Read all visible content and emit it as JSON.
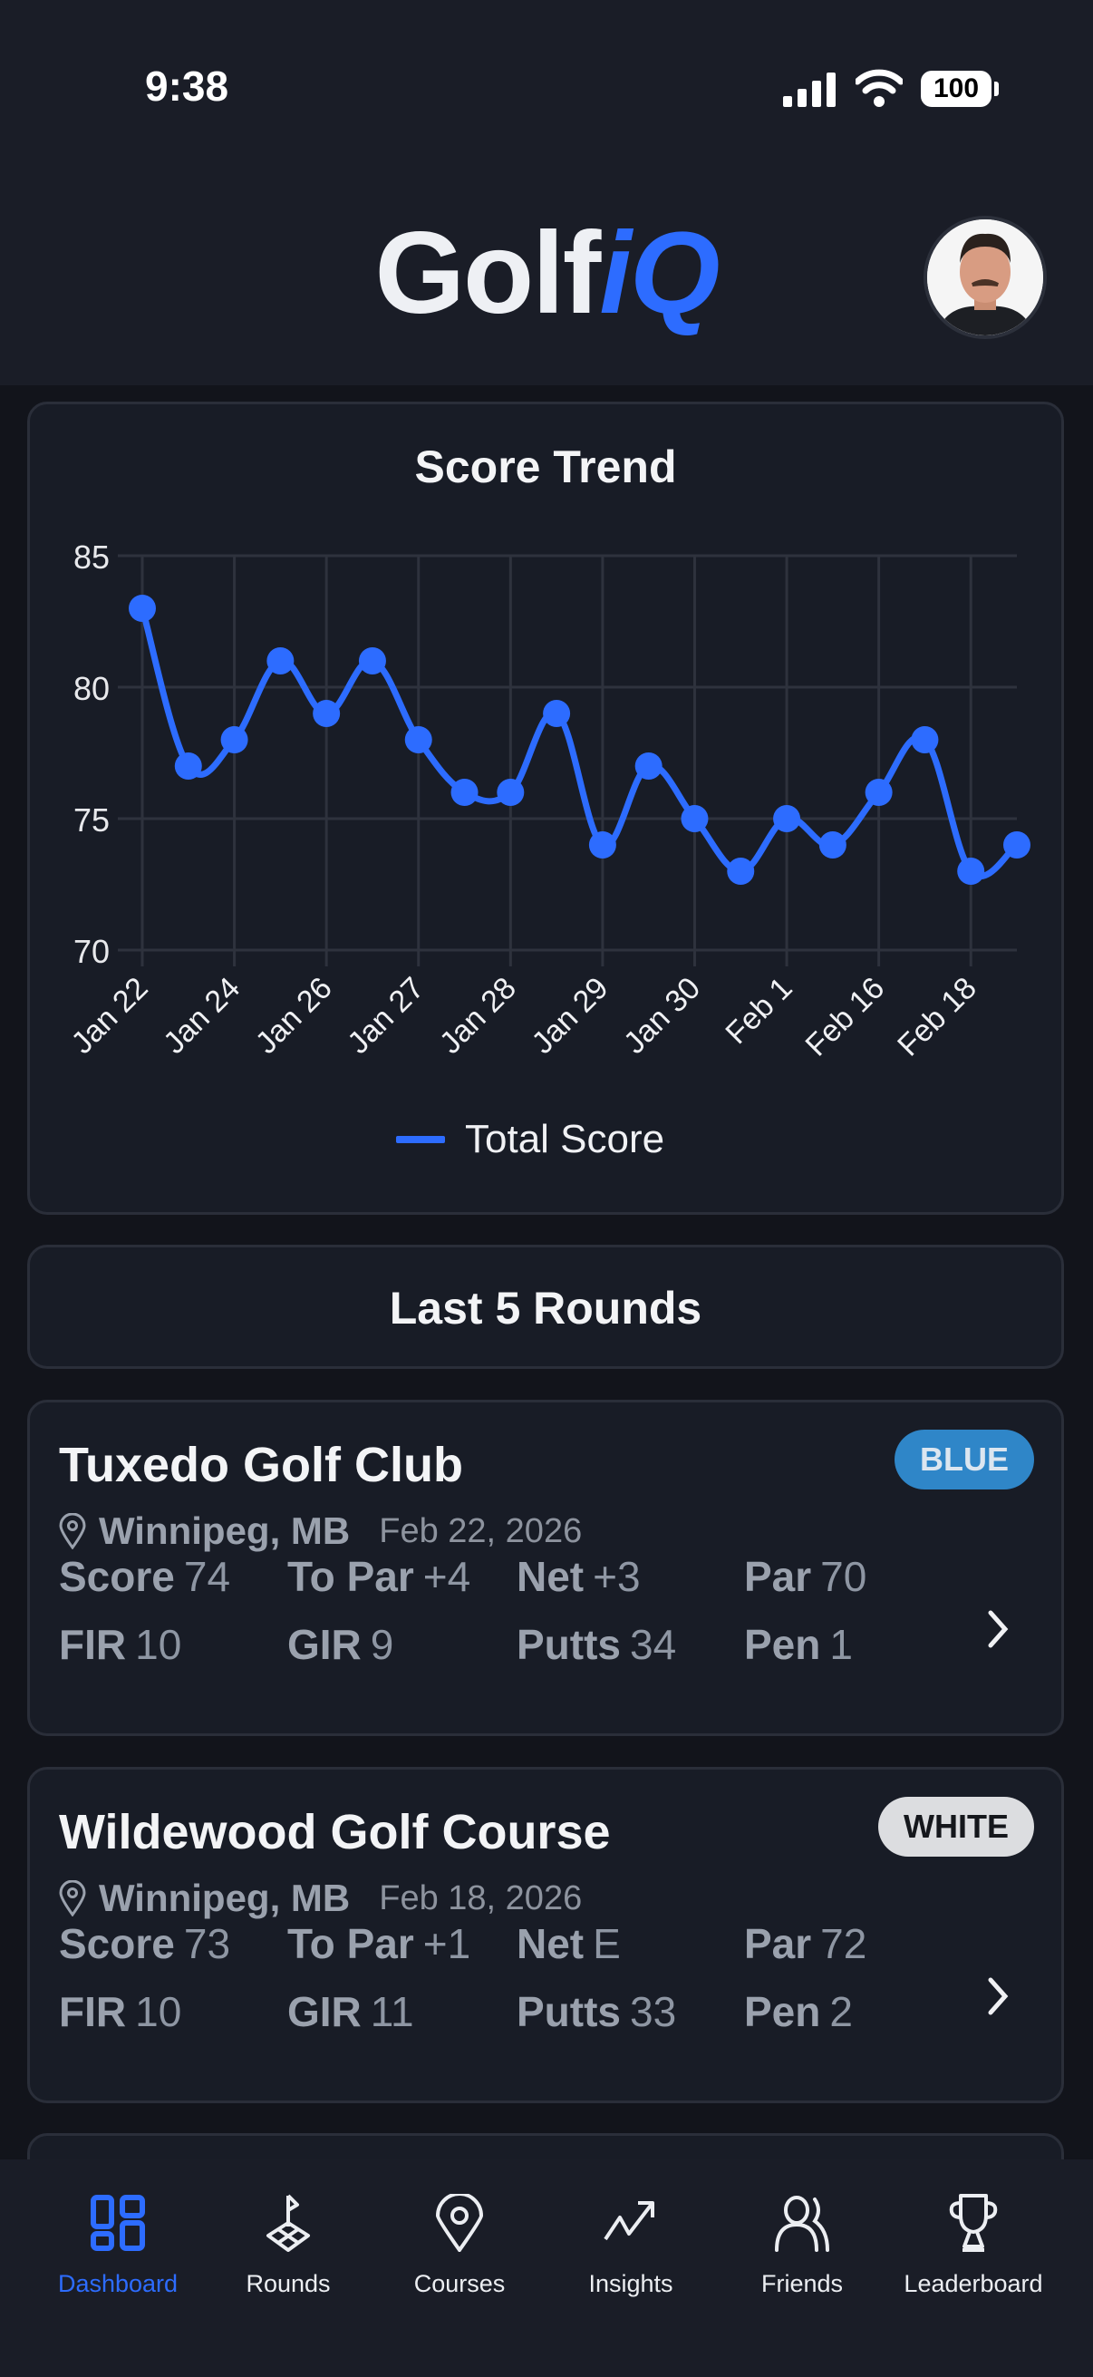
{
  "status_bar": {
    "time": "9:38",
    "battery": "100"
  },
  "header": {
    "logo_text_1": "Golf",
    "logo_text_2": "iQ",
    "avatar_alt": "profile-photo"
  },
  "score_trend": {
    "title": "Score Trend",
    "chart_data": {
      "type": "line",
      "title": "Score Trend",
      "x_tick_labels": [
        "Jan 22",
        "Jan 24",
        "Jan 26",
        "Jan 27",
        "Jan 28",
        "Jan 29",
        "Jan 30",
        "Feb 1",
        "Feb 16",
        "Feb 18"
      ],
      "series": [
        {
          "name": "Total Score",
          "color": "#2d6cff",
          "values": [
            83,
            77,
            78,
            81,
            79,
            81,
            78,
            76,
            76,
            79,
            74,
            77,
            75,
            73,
            75,
            74,
            76,
            78,
            73,
            74
          ]
        }
      ],
      "y_ticks": [
        70,
        75,
        80,
        85
      ],
      "ylim": [
        70,
        85
      ],
      "grid": true,
      "legend": "bottom"
    }
  },
  "last_rounds": {
    "title": "Last 5 Rounds"
  },
  "rounds": [
    {
      "course": "Tuxedo Golf Club",
      "tee": "BLUE",
      "tee_bg": "#2f86c8",
      "tee_fg": "#dce6f0",
      "location": "Winnipeg, MB",
      "date": "Feb 22, 2026",
      "stats": [
        {
          "label": "Score",
          "value": "74"
        },
        {
          "label": "To Par",
          "value": "+4"
        },
        {
          "label": "Net",
          "value": "+3"
        },
        {
          "label": "Par",
          "value": "70"
        },
        {
          "label": "FIR",
          "value": "10"
        },
        {
          "label": "GIR",
          "value": "9"
        },
        {
          "label": "Putts",
          "value": "34"
        },
        {
          "label": "Pen",
          "value": "1"
        }
      ]
    },
    {
      "course": "Wildewood Golf Course",
      "tee": "WHITE",
      "tee_bg": "#dcdde0",
      "tee_fg": "#15171c",
      "location": "Winnipeg, MB",
      "date": "Feb 18, 2026",
      "stats": [
        {
          "label": "Score",
          "value": "73"
        },
        {
          "label": "To Par",
          "value": "+1"
        },
        {
          "label": "Net",
          "value": "E"
        },
        {
          "label": "Par",
          "value": "72"
        },
        {
          "label": "FIR",
          "value": "10"
        },
        {
          "label": "GIR",
          "value": "11"
        },
        {
          "label": "Putts",
          "value": "33"
        },
        {
          "label": "Pen",
          "value": "2"
        }
      ]
    }
  ],
  "nav": {
    "active": "Dashboard",
    "accent": "#2d6cff",
    "items": [
      {
        "label": "Dashboard",
        "icon": "dashboard-grid-icon"
      },
      {
        "label": "Rounds",
        "icon": "golf-flag-icon"
      },
      {
        "label": "Courses",
        "icon": "map-pin-icon"
      },
      {
        "label": "Insights",
        "icon": "trending-up-icon"
      },
      {
        "label": "Friends",
        "icon": "users-icon"
      },
      {
        "label": "Leaderboard",
        "icon": "trophy-icon"
      }
    ]
  }
}
